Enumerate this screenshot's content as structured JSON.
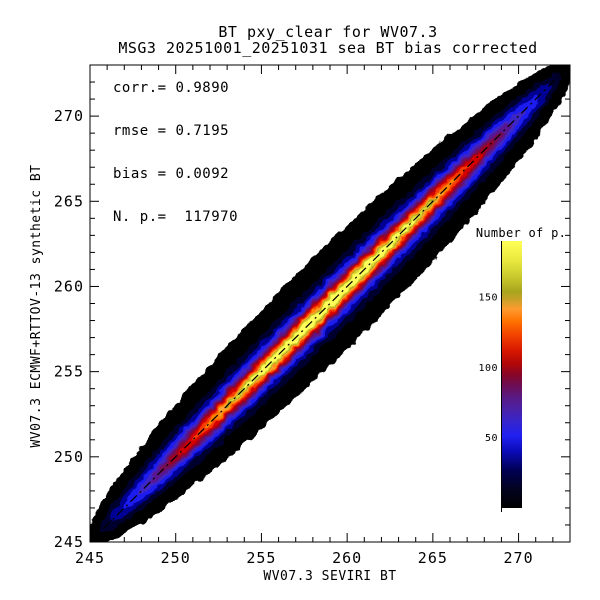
{
  "window": {
    "background": "#ffffff"
  },
  "title": {
    "line1": "BT pxy_clear for WV07.3",
    "line2": "MSG3 20251001_20251031 sea BT bias corrected"
  },
  "stats": {
    "lines": [
      "corr.= 0.9890",
      "rmse = 0.7195",
      "bias = 0.0092",
      "N. p.=  117970"
    ]
  },
  "axes": {
    "x": {
      "title": "WV07.3 SEVIRI BT",
      "min": 245,
      "max": 273,
      "major_every": 5,
      "minor_every": 1,
      "major_ticks": [
        245,
        250,
        255,
        260,
        265,
        270
      ]
    },
    "y": {
      "title": "WV07.3 ECMWF+RTTOV-13 synthetic BT",
      "min": 245,
      "max": 273,
      "major_every": 5,
      "minor_every": 1,
      "major_ticks": [
        245,
        250,
        255,
        260,
        265,
        270
      ]
    }
  },
  "colorbar": {
    "title": "Number of p.",
    "vmin": 0,
    "vmax": 190,
    "ticks": [
      50,
      100,
      150
    ],
    "gradient": [
      {
        "at": 0.0,
        "color": "#000000"
      },
      {
        "at": 0.07,
        "color": "#03031f"
      },
      {
        "at": 0.14,
        "color": "#000052"
      },
      {
        "at": 0.21,
        "color": "#0a0ab4"
      },
      {
        "at": 0.27,
        "color": "#2020f0"
      },
      {
        "at": 0.32,
        "color": "#3524cf"
      },
      {
        "at": 0.37,
        "color": "#4a21a6"
      },
      {
        "at": 0.42,
        "color": "#5c187e"
      },
      {
        "at": 0.46,
        "color": "#6e0d52"
      },
      {
        "at": 0.5,
        "color": "#870628"
      },
      {
        "at": 0.54,
        "color": "#b00708"
      },
      {
        "at": 0.59,
        "color": "#d81800"
      },
      {
        "at": 0.65,
        "color": "#f34500"
      },
      {
        "at": 0.7,
        "color": "#ff7200"
      },
      {
        "at": 0.745,
        "color": "#ff9a2e"
      },
      {
        "at": 0.775,
        "color": "#cfa028"
      },
      {
        "at": 0.81,
        "color": "#a8a41e"
      },
      {
        "at": 0.86,
        "color": "#c6c62c"
      },
      {
        "at": 0.93,
        "color": "#e9e940"
      },
      {
        "at": 1.0,
        "color": "#ffff55"
      }
    ]
  },
  "chart_data": {
    "type": "heatmap",
    "title": "BT pxy_clear for WV07.3",
    "subtitle": "MSG3 20251001_20251031 sea BT bias corrected",
    "xlabel": "WV07.3 SEVIRI BT",
    "ylabel": "WV07.3 ECMWF+RTTOV-13 synthetic BT",
    "xlim": [
      245,
      273
    ],
    "ylim": [
      245,
      273
    ],
    "grid": false,
    "legend_position": "right-inside",
    "stats": {
      "corr": 0.989,
      "rmse": 0.7195,
      "bias": 0.0092,
      "n_points": 117970
    },
    "identity_line": {
      "style": "dash-dot",
      "color": "#000000",
      "from": [
        245,
        245
      ],
      "to": [
        273,
        273
      ]
    },
    "colorbar_label": "Number of p.",
    "colorbar_ticks": [
      50,
      100,
      150
    ],
    "diagonal_center": 259.05,
    "density_bands": [
      {
        "level": 10,
        "color": "#000000",
        "half_length": 14.05,
        "half_width": 2.6
      },
      {
        "level": 25,
        "color": "#00002e",
        "half_length": 13.4,
        "half_width": 1.55
      },
      {
        "level": 38,
        "color": "#000094",
        "half_length": 12.8,
        "half_width": 1.22
      },
      {
        "level": 50,
        "color": "#1c1cf0",
        "half_length": 12.1,
        "half_width": 1.02
      },
      {
        "level": 62,
        "color": "#3d25c4",
        "half_length": 11.3,
        "half_width": 0.88
      },
      {
        "level": 72,
        "color": "#5a1690",
        "half_length": 10.6,
        "half_width": 0.78
      },
      {
        "level": 82,
        "color": "#750b52",
        "half_length": 10.0,
        "half_width": 0.69
      },
      {
        "level": 92,
        "color": "#9c0420",
        "half_length": 9.5,
        "half_width": 0.62
      },
      {
        "level": 103,
        "color": "#d40600",
        "half_length": 8.9,
        "half_width": 0.55
      },
      {
        "level": 118,
        "color": "#f63c00",
        "half_length": 8.1,
        "half_width": 0.47
      },
      {
        "level": 132,
        "color": "#ff8400",
        "half_length": 7.3,
        "half_width": 0.4
      },
      {
        "level": 142,
        "color": "#ffa435",
        "half_length": 6.6,
        "half_width": 0.35
      },
      {
        "level": 152,
        "color": "#a8a01e",
        "half_length": 6.2,
        "half_width": 0.3
      },
      {
        "level": 165,
        "color": "#d8d832",
        "half_length": 5.9,
        "half_width": 0.26
      },
      {
        "level": 180,
        "color": "#ffff5a",
        "half_length": 5.2,
        "half_width": 0.19
      }
    ]
  }
}
